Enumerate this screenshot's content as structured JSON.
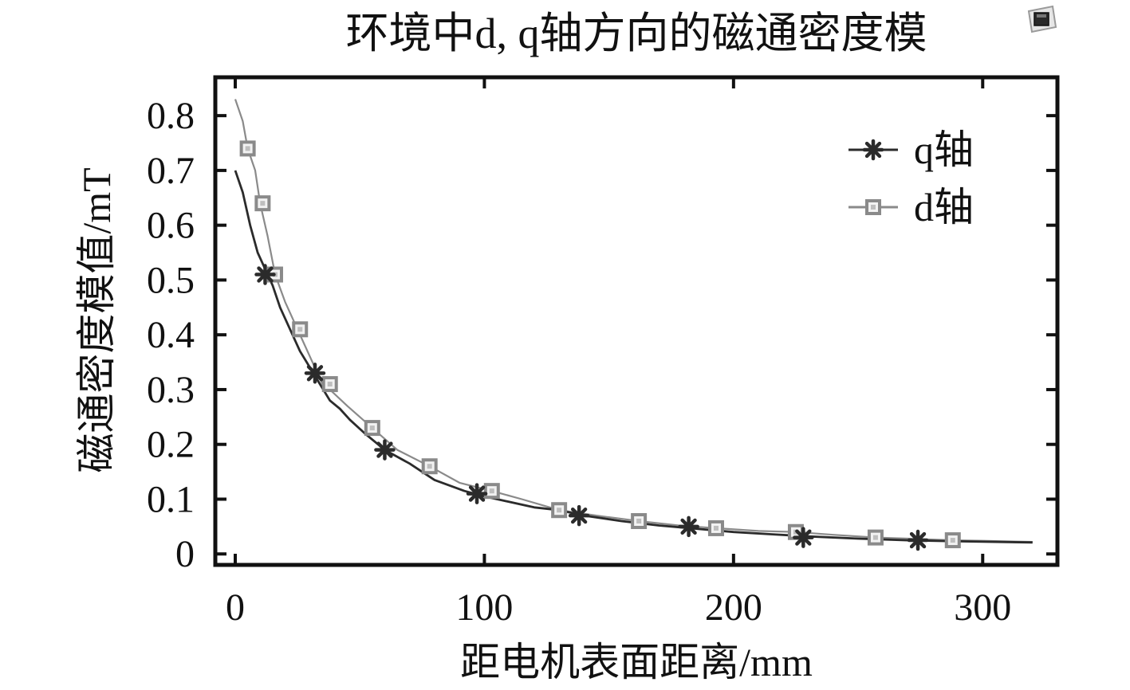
{
  "chart_data": {
    "type": "line",
    "title": "环境中d, q轴方向的磁通密度模",
    "xlabel": "距电机表面距离/mm",
    "ylabel": "磁通密度模值/mT",
    "xlim": [
      -8,
      330
    ],
    "ylim": [
      -0.02,
      0.87
    ],
    "x_ticks": [
      0,
      100,
      200,
      300
    ],
    "x_tick_labels": [
      "0",
      "100",
      "200",
      "300"
    ],
    "y_ticks": [
      0,
      0.1,
      0.2,
      0.3,
      0.4,
      0.5,
      0.6,
      0.7,
      0.8
    ],
    "y_tick_labels": [
      "0",
      "0.1",
      "0.2",
      "0.3",
      "0.4",
      "0.5",
      "0.6",
      "0.7",
      "0.8"
    ],
    "grid": false,
    "legend": "top-right",
    "series": [
      {
        "name": "q轴",
        "marker": "asterisk",
        "color": "#2b2b2b",
        "line_x": [
          0,
          3,
          6,
          9,
          12,
          15,
          18,
          22,
          26,
          30,
          34,
          38,
          42,
          46,
          52,
          60,
          70,
          80,
          92,
          100,
          110,
          120,
          130,
          140,
          155,
          170,
          185,
          200,
          215,
          230,
          250,
          270,
          290,
          320
        ],
        "line_y": [
          0.7,
          0.66,
          0.6,
          0.55,
          0.52,
          0.49,
          0.45,
          0.41,
          0.37,
          0.34,
          0.31,
          0.28,
          0.265,
          0.245,
          0.22,
          0.19,
          0.165,
          0.135,
          0.115,
          0.105,
          0.095,
          0.085,
          0.08,
          0.07,
          0.06,
          0.052,
          0.046,
          0.04,
          0.036,
          0.032,
          0.028,
          0.025,
          0.023,
          0.021
        ],
        "marker_x": [
          12,
          32,
          60,
          97,
          138,
          182,
          228,
          274
        ],
        "marker_y": [
          0.51,
          0.33,
          0.19,
          0.11,
          0.07,
          0.05,
          0.03,
          0.025
        ]
      },
      {
        "name": "d轴",
        "marker": "square",
        "color": "#8a8a8a",
        "line_x": [
          0,
          3,
          5,
          8,
          10,
          13,
          16,
          20,
          25,
          30,
          35,
          38,
          45,
          55,
          65,
          78,
          90,
          103,
          115,
          130,
          145,
          162,
          178,
          193,
          210,
          225,
          240,
          257,
          270,
          288,
          300,
          320
        ],
        "line_y": [
          0.83,
          0.79,
          0.74,
          0.7,
          0.64,
          0.58,
          0.51,
          0.46,
          0.41,
          0.36,
          0.31,
          0.3,
          0.27,
          0.23,
          0.19,
          0.16,
          0.13,
          0.115,
          0.1,
          0.08,
          0.07,
          0.06,
          0.052,
          0.047,
          0.042,
          0.04,
          0.035,
          0.03,
          0.028,
          0.025,
          0.024,
          0.022
        ],
        "marker_x": [
          5,
          11,
          16,
          26,
          38,
          55,
          78,
          103,
          130,
          162,
          193,
          225,
          257,
          288
        ],
        "marker_y": [
          0.74,
          0.64,
          0.51,
          0.41,
          0.31,
          0.23,
          0.16,
          0.115,
          0.08,
          0.06,
          0.047,
          0.04,
          0.03,
          0.025
        ]
      }
    ]
  },
  "decor": {
    "corner_icon": "window-restore-icon"
  }
}
